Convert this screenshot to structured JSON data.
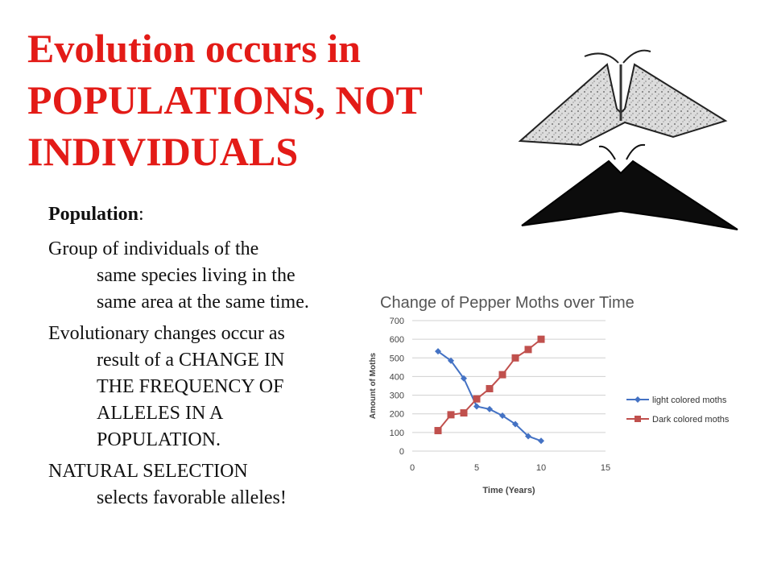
{
  "slide": {
    "title_lines": [
      "Evolution occurs in",
      "POPULATIONS, NOT",
      "INDIVIDUALS"
    ],
    "population_label": "Population",
    "population_colon": ":",
    "paragraphs": [
      [
        "Group of individuals of the",
        "same species living in the",
        "same area at the same time."
      ],
      [
        "Evolutionary changes occur as",
        "result of a CHANGE IN",
        "THE FREQUENCY OF",
        "ALLELES IN A",
        "POPULATION."
      ],
      [
        "NATURAL SELECTION",
        "selects favorable alleles!"
      ]
    ]
  },
  "images": {
    "moth_light": "light-peppered-moth",
    "moth_dark": "dark-peppered-moth"
  },
  "chart_data": {
    "type": "line",
    "title": "Change of Pepper Moths over Time",
    "xlabel": "Time (Years)",
    "ylabel": "Amount of Moths",
    "xlim": [
      0,
      15
    ],
    "ylim": [
      0,
      700
    ],
    "xticks": [
      0,
      5,
      10,
      15
    ],
    "yticks": [
      0,
      100,
      200,
      300,
      400,
      500,
      600,
      700
    ],
    "grid": true,
    "legend_position": "right",
    "series": [
      {
        "name": "light colored moths",
        "color": "#4472c4",
        "marker": "diamond",
        "x": [
          2,
          3,
          4,
          5,
          6,
          7,
          8,
          9,
          10
        ],
        "y": [
          535,
          485,
          390,
          240,
          225,
          190,
          145,
          80,
          55
        ]
      },
      {
        "name": "Dark colored moths",
        "color": "#c0504d",
        "marker": "square",
        "x": [
          2,
          3,
          4,
          5,
          6,
          7,
          8,
          9,
          10
        ],
        "y": [
          110,
          195,
          205,
          280,
          335,
          410,
          500,
          545,
          600
        ]
      }
    ]
  }
}
